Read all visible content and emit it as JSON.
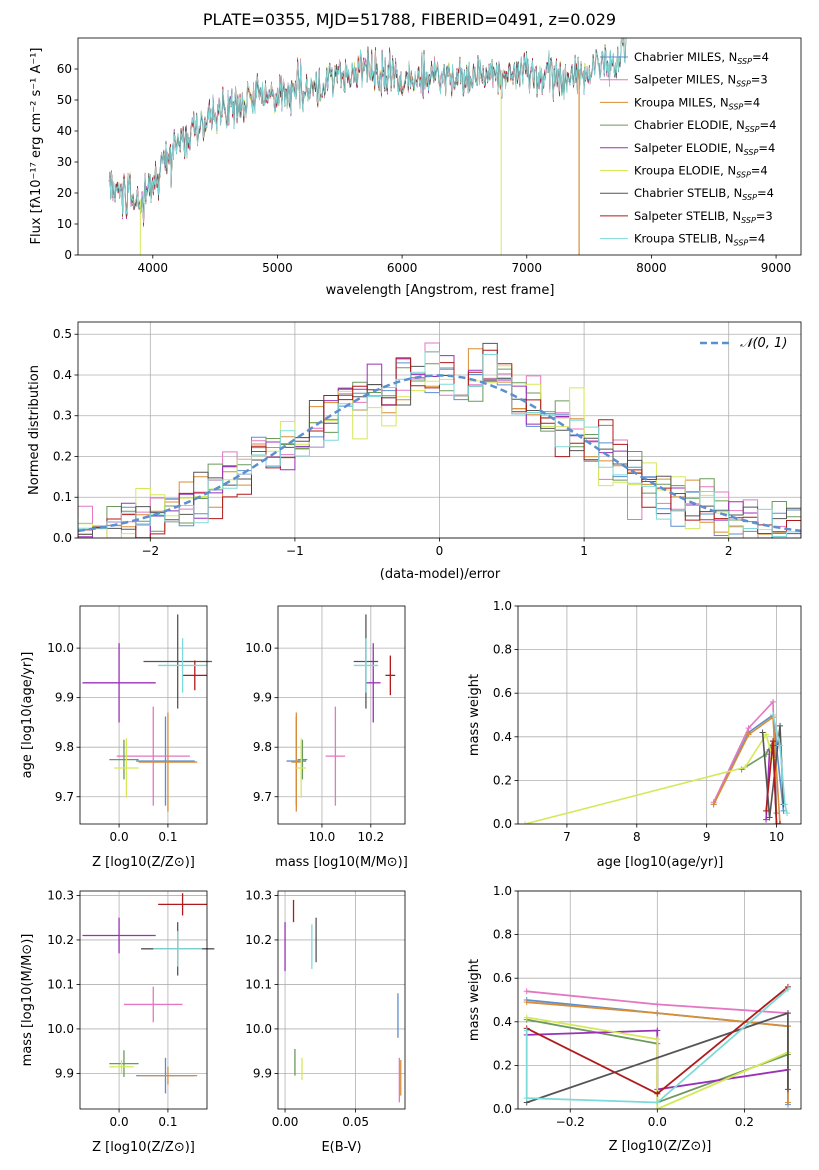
{
  "title": "PLATE=0355, MJD=51788, FIBERID=0491, z=0.029",
  "colors": [
    "#5b8fd0",
    "#e377c2",
    "#d98d36",
    "#6b9a5b",
    "#9b30b8",
    "#d6e85a",
    "#555555",
    "#b01a1a",
    "#7ed9d9"
  ],
  "legend_entries": [
    "Chabrier MILES, N_SSP=4",
    "Salpeter MILES, N_SSP=3",
    "Kroupa MILES, N_SSP=4",
    "Chabrier ELODIE, N_SSP=4",
    "Salpeter ELODIE, N_SSP=4",
    "Kroupa ELODIE, N_SSP=4",
    "Chabrier STELIB, N_SSP=4",
    "Salpeter STELIB, N_SSP=3",
    "Kroupa STELIB, N_SSP=4"
  ],
  "chart_data": [
    {
      "type": "line",
      "name": "spectrum",
      "xlabel": "wavelength [Angstrom, rest frame]",
      "ylabel": "Flux [f_λ 10^-17 erg cm^-2 s^-1 A^-1]",
      "xlim": [
        3400,
        9200
      ],
      "ylim": [
        0,
        70
      ],
      "xticks": [
        4000,
        5000,
        6000,
        7000,
        8000,
        9000
      ],
      "yticks": [
        0,
        10,
        20,
        30,
        40,
        50,
        60
      ],
      "continuum_x": [
        3650,
        3800,
        3900,
        4000,
        4100,
        4200,
        4300,
        4400,
        4500,
        4600,
        4700,
        4800,
        4900,
        5000,
        5100,
        5200,
        5300,
        5400,
        5500,
        5600,
        5700,
        5800,
        5900,
        6000,
        6100,
        6200,
        6300,
        6400,
        6500,
        6600,
        6700,
        6800,
        6900,
        7000,
        7100,
        7200,
        7300,
        7400,
        7500,
        7600,
        7700,
        7800
      ],
      "continuum_y": [
        22,
        20,
        18,
        24,
        30,
        36,
        38,
        41,
        44,
        47,
        49,
        51,
        52,
        53,
        54,
        54,
        55,
        56,
        57,
        58,
        58,
        58,
        60,
        56,
        55,
        57,
        58,
        57,
        56,
        58,
        58,
        59,
        58,
        59,
        58,
        59,
        56,
        59,
        60,
        62,
        62,
        64
      ],
      "legend_position": "upper right"
    },
    {
      "type": "line",
      "name": "residual-histogram",
      "xlabel": "(data-model)/error",
      "ylabel": "Normed distribution",
      "xlim": [
        -2.5,
        2.5
      ],
      "ylim": [
        0,
        0.53
      ],
      "xticks": [
        -2,
        -1,
        0,
        1,
        2
      ],
      "yticks": [
        0.0,
        0.1,
        0.2,
        0.3,
        0.4,
        0.5
      ],
      "reference_curve": "N(0,1)",
      "reference_label": "𝒩(0, 1)",
      "legend_position": "upper right",
      "grid": true
    },
    {
      "type": "scatter",
      "name": "age-vs-Z",
      "xlabel": "Z [log10(Z/Z⊙)]",
      "ylabel": "age [log10(age/yr)]",
      "xlim": [
        -0.08,
        0.18
      ],
      "ylim": [
        9.645,
        10.085
      ],
      "xticks": [
        0.0,
        0.1
      ],
      "yticks": [
        9.7,
        9.8,
        9.9,
        10.0
      ],
      "points": [
        {
          "x": 0.095,
          "y": 9.772,
          "xerr": 0.06,
          "yerr": 0.09
        },
        {
          "x": 0.07,
          "y": 9.782,
          "xerr": 0.075,
          "yerr": 0.1
        },
        {
          "x": 0.1,
          "y": 9.77,
          "xerr": 0.06,
          "yerr": 0.1
        },
        {
          "x": 0.01,
          "y": 9.775,
          "xerr": 0.03,
          "yerr": 0.04
        },
        {
          "x": 0.0,
          "y": 9.93,
          "xerr": 0.075,
          "yerr": 0.08
        },
        {
          "x": 0.015,
          "y": 9.758,
          "xerr": 0.025,
          "yerr": 0.06
        },
        {
          "x": 0.12,
          "y": 9.973,
          "xerr": 0.07,
          "yerr": 0.095
        },
        {
          "x": 0.155,
          "y": 9.945,
          "xerr": 0.025,
          "yerr": 0.03
        },
        {
          "x": 0.13,
          "y": 9.965,
          "xerr": 0.05,
          "yerr": 0.055
        }
      ]
    },
    {
      "type": "scatter",
      "name": "age-vs-mass",
      "xlabel": "mass [log10(M/M⊙)]",
      "ylabel": "",
      "xlim": [
        9.82,
        10.34
      ],
      "ylim": [
        9.645,
        10.085
      ],
      "xticks": [
        10.0,
        10.2
      ],
      "yticks": [
        9.7,
        9.8,
        9.9,
        10.0
      ],
      "points": [
        {
          "x": 9.895,
          "y": 9.772,
          "xerr": 0.04,
          "yerr": 0.09
        },
        {
          "x": 10.055,
          "y": 9.782,
          "xerr": 0.04,
          "yerr": 0.1
        },
        {
          "x": 9.895,
          "y": 9.77,
          "xerr": 0.02,
          "yerr": 0.1
        },
        {
          "x": 9.92,
          "y": 9.775,
          "xerr": 0.02,
          "yerr": 0.04
        },
        {
          "x": 10.21,
          "y": 9.93,
          "xerr": 0.03,
          "yerr": 0.08
        },
        {
          "x": 9.915,
          "y": 9.758,
          "xerr": 0.02,
          "yerr": 0.06
        },
        {
          "x": 10.18,
          "y": 9.973,
          "xerr": 0.05,
          "yerr": 0.095
        },
        {
          "x": 10.28,
          "y": 9.945,
          "xerr": 0.02,
          "yerr": 0.04
        },
        {
          "x": 10.18,
          "y": 9.965,
          "xerr": 0.05,
          "yerr": 0.055
        }
      ]
    },
    {
      "type": "line",
      "name": "mass-weight-vs-age",
      "xlabel": "age [log10(age/yr)]",
      "ylabel": "mass weight",
      "xlim": [
        6.3,
        10.35
      ],
      "ylim": [
        0,
        1
      ],
      "xticks": [
        7,
        8,
        9,
        10
      ],
      "yticks": [
        0.0,
        0.2,
        0.4,
        0.6,
        0.8,
        1.0
      ],
      "grid": true
    },
    {
      "type": "scatter",
      "name": "mass-vs-Z",
      "xlabel": "Z [log10(Z/Z⊙)]",
      "ylabel": "mass [log10(M/M⊙)]",
      "xlim": [
        -0.08,
        0.18
      ],
      "ylim": [
        9.82,
        10.31
      ],
      "xticks": [
        0.0,
        0.1
      ],
      "yticks": [
        9.9,
        10.0,
        10.1,
        10.2,
        10.3
      ],
      "points": [
        {
          "x": 0.095,
          "y": 9.895,
          "xerr": 0.06,
          "yerr": 0.04
        },
        {
          "x": 0.07,
          "y": 10.055,
          "xerr": 0.06,
          "yerr": 0.04
        },
        {
          "x": 0.1,
          "y": 9.895,
          "xerr": 0.06,
          "yerr": 0.02
        },
        {
          "x": 0.01,
          "y": 9.922,
          "xerr": 0.03,
          "yerr": 0.03
        },
        {
          "x": 0.0,
          "y": 10.21,
          "xerr": 0.075,
          "yerr": 0.04
        },
        {
          "x": 0.005,
          "y": 9.915,
          "xerr": 0.025,
          "yerr": 0.015
        },
        {
          "x": 0.12,
          "y": 10.18,
          "xerr": 0.075,
          "yerr": 0.06
        },
        {
          "x": 0.13,
          "y": 10.28,
          "xerr": 0.05,
          "yerr": 0.025
        },
        {
          "x": 0.12,
          "y": 10.18,
          "xerr": 0.05,
          "yerr": 0.04
        }
      ]
    },
    {
      "type": "scatter",
      "name": "mass-vs-EBV",
      "xlabel": "E(B-V)",
      "ylabel": "",
      "xlim": [
        -0.005,
        0.085
      ],
      "ylim": [
        9.82,
        10.31
      ],
      "xticks": [
        0.0,
        0.05
      ],
      "yticks": [
        9.9,
        10.0,
        10.1,
        10.2,
        10.3
      ],
      "points": [
        {
          "x": 0.08,
          "y": 10.03,
          "xerr": 0,
          "yerr": 0.05
        },
        {
          "x": 0.081,
          "y": 9.885,
          "xerr": 0,
          "yerr": 0.05
        },
        {
          "x": 0.082,
          "y": 9.89,
          "xerr": 0,
          "yerr": 0.04
        },
        {
          "x": 0.007,
          "y": 9.925,
          "xerr": 0,
          "yerr": 0.03
        },
        {
          "x": 0.0,
          "y": 10.185,
          "xerr": 0,
          "yerr": 0.055
        },
        {
          "x": 0.012,
          "y": 9.91,
          "xerr": 0,
          "yerr": 0.025
        },
        {
          "x": 0.022,
          "y": 10.2,
          "xerr": 0,
          "yerr": 0.05
        },
        {
          "x": 0.006,
          "y": 10.265,
          "xerr": 0,
          "yerr": 0.025
        },
        {
          "x": 0.019,
          "y": 10.185,
          "xerr": 0,
          "yerr": 0.05
        }
      ]
    },
    {
      "type": "line",
      "name": "mass-weight-vs-Z",
      "xlabel": "Z [log10(Z/Z⊙)]",
      "ylabel": "mass weight",
      "xlim": [
        -0.32,
        0.33
      ],
      "ylim": [
        0,
        1
      ],
      "xticks": [
        -0.2,
        0.0,
        0.2
      ],
      "yticks": [
        0.0,
        0.2,
        0.4,
        0.6,
        0.8,
        1.0
      ],
      "grid": true
    }
  ]
}
